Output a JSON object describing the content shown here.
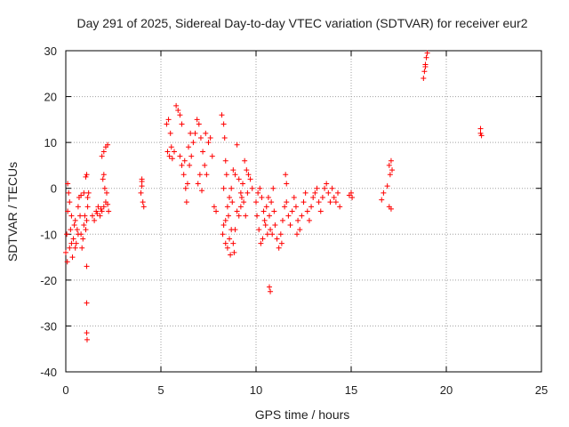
{
  "chart_data": {
    "type": "scatter",
    "title": "Day 291 of 2025, Sidereal Day-to-day VTEC variation (SDTVAR) for receiver eur2",
    "xlabel": "GPS time / hours",
    "ylabel": "SDTVAR / TECUs",
    "xlim": [
      0,
      25
    ],
    "ylim": [
      -40,
      30
    ],
    "xticks": [
      0,
      5,
      10,
      15,
      20,
      25
    ],
    "yticks": [
      -40,
      -30,
      -20,
      -10,
      0,
      10,
      20,
      30
    ],
    "grid": true,
    "marker": "+",
    "color": "#ff0000",
    "series": [
      {
        "name": "SDTVAR",
        "points": [
          [
            0.0,
            -14
          ],
          [
            0.05,
            -10
          ],
          [
            0.1,
            -5
          ],
          [
            0.15,
            -1
          ],
          [
            0.2,
            -3
          ],
          [
            0.25,
            -9
          ],
          [
            0.3,
            -12
          ],
          [
            0.35,
            -15
          ],
          [
            0.4,
            -11
          ],
          [
            0.45,
            -8
          ],
          [
            0.5,
            -7
          ],
          [
            0.55,
            -12
          ],
          [
            0.6,
            -9
          ],
          [
            0.65,
            -4
          ],
          [
            0.7,
            -2
          ],
          [
            0.75,
            -6
          ],
          [
            0.8,
            -10
          ],
          [
            0.85,
            -13
          ],
          [
            0.9,
            -11
          ],
          [
            0.95,
            -8
          ],
          [
            1.0,
            -6
          ],
          [
            1.05,
            -9
          ],
          [
            1.1,
            -7
          ],
          [
            1.15,
            -4
          ],
          [
            0.1,
            1
          ],
          [
            0.08,
            -16
          ],
          [
            0.2,
            -13
          ],
          [
            0.3,
            -6
          ],
          [
            0.5,
            -13
          ],
          [
            0.65,
            -10
          ],
          [
            0.8,
            -1.5
          ],
          [
            0.95,
            -1
          ],
          [
            1.05,
            2.5
          ],
          [
            1.1,
            3
          ],
          [
            1.15,
            -2
          ],
          [
            1.2,
            -1
          ],
          [
            1.1,
            -17
          ],
          [
            1.1,
            -25
          ],
          [
            1.1,
            -31.5
          ],
          [
            1.12,
            -33
          ],
          [
            1.4,
            -6
          ],
          [
            1.5,
            -7
          ],
          [
            1.6,
            -5
          ],
          [
            1.7,
            -4
          ],
          [
            1.8,
            -6
          ],
          [
            1.9,
            -5
          ],
          [
            2.0,
            -4
          ],
          [
            2.1,
            -3
          ],
          [
            2.2,
            -3.5
          ],
          [
            2.25,
            -5
          ],
          [
            1.9,
            7
          ],
          [
            2.0,
            8
          ],
          [
            2.1,
            9
          ],
          [
            2.2,
            9.5
          ],
          [
            2.0,
            3
          ],
          [
            2.05,
            0
          ],
          [
            1.95,
            2
          ],
          [
            2.15,
            -1
          ],
          [
            1.85,
            -4.5
          ],
          [
            1.65,
            -5.5
          ],
          [
            4.0,
            2
          ],
          [
            4.0,
            0.5
          ],
          [
            3.95,
            -1
          ],
          [
            4.05,
            -3
          ],
          [
            4.1,
            -4
          ],
          [
            4.0,
            1.5
          ],
          [
            5.3,
            14
          ],
          [
            5.4,
            15
          ],
          [
            5.5,
            12
          ],
          [
            5.35,
            8
          ],
          [
            5.45,
            7
          ],
          [
            5.6,
            6.5
          ],
          [
            5.7,
            8
          ],
          [
            5.8,
            18
          ],
          [
            5.9,
            17
          ],
          [
            6.0,
            16
          ],
          [
            6.1,
            14
          ],
          [
            6.0,
            7
          ],
          [
            6.1,
            5
          ],
          [
            6.2,
            3
          ],
          [
            6.3,
            0
          ],
          [
            6.35,
            -3
          ],
          [
            6.4,
            1
          ],
          [
            6.5,
            5
          ],
          [
            6.6,
            7
          ],
          [
            6.7,
            10
          ],
          [
            6.8,
            12
          ],
          [
            6.9,
            15
          ],
          [
            7.0,
            14
          ],
          [
            7.1,
            11
          ],
          [
            7.2,
            8
          ],
          [
            7.3,
            5
          ],
          [
            7.4,
            3
          ],
          [
            7.5,
            10
          ],
          [
            7.6,
            11
          ],
          [
            7.7,
            7
          ],
          [
            7.8,
            -4
          ],
          [
            7.9,
            -5
          ],
          [
            7.05,
            3
          ],
          [
            6.95,
            1
          ],
          [
            7.15,
            -0.5
          ],
          [
            6.45,
            9
          ],
          [
            6.55,
            12
          ],
          [
            7.35,
            12
          ],
          [
            5.55,
            9
          ],
          [
            6.25,
            6
          ],
          [
            8.2,
            16
          ],
          [
            8.3,
            14
          ],
          [
            8.35,
            11
          ],
          [
            8.4,
            6
          ],
          [
            8.45,
            3
          ],
          [
            8.3,
            0
          ],
          [
            8.5,
            -4
          ],
          [
            8.6,
            -2
          ],
          [
            8.7,
            0
          ],
          [
            8.8,
            4
          ],
          [
            8.9,
            3
          ],
          [
            9.0,
            9.5
          ],
          [
            9.1,
            2
          ],
          [
            9.2,
            -1
          ],
          [
            9.3,
            1
          ],
          [
            9.4,
            6
          ],
          [
            9.5,
            4
          ],
          [
            9.6,
            3
          ],
          [
            9.7,
            2
          ],
          [
            9.8,
            0
          ],
          [
            8.3,
            -8
          ],
          [
            8.25,
            -10
          ],
          [
            8.4,
            -12
          ],
          [
            8.5,
            -13
          ],
          [
            8.6,
            -11
          ],
          [
            8.7,
            -9
          ],
          [
            8.8,
            -12
          ],
          [
            8.85,
            -14
          ],
          [
            8.9,
            -9
          ],
          [
            9.0,
            -5
          ],
          [
            9.1,
            -6
          ],
          [
            9.2,
            -4
          ],
          [
            9.35,
            -3
          ],
          [
            9.45,
            -6
          ],
          [
            9.55,
            -1
          ],
          [
            8.65,
            -14.5
          ],
          [
            8.4,
            -7
          ],
          [
            8.55,
            -6
          ],
          [
            8.75,
            -3
          ],
          [
            9.25,
            -2
          ],
          [
            10.0,
            -3
          ],
          [
            10.1,
            -1
          ],
          [
            10.2,
            0
          ],
          [
            10.3,
            -2
          ],
          [
            10.4,
            -5
          ],
          [
            10.5,
            -8
          ],
          [
            10.6,
            -10
          ],
          [
            10.7,
            -6
          ],
          [
            10.8,
            -3
          ],
          [
            10.9,
            0
          ],
          [
            10.05,
            -6
          ],
          [
            10.15,
            -9
          ],
          [
            10.25,
            -12
          ],
          [
            10.35,
            -11
          ],
          [
            10.45,
            -7
          ],
          [
            10.55,
            -4
          ],
          [
            10.65,
            -2
          ],
          [
            10.75,
            -9
          ],
          [
            10.85,
            -10
          ],
          [
            10.95,
            -5
          ],
          [
            11.0,
            -8
          ],
          [
            11.1,
            -11
          ],
          [
            11.2,
            -13
          ],
          [
            11.3,
            -10
          ],
          [
            11.4,
            -7
          ],
          [
            11.5,
            -4
          ],
          [
            11.6,
            -3
          ],
          [
            11.7,
            -6
          ],
          [
            11.8,
            -8
          ],
          [
            11.9,
            -5
          ],
          [
            12.0,
            -2
          ],
          [
            12.1,
            -4
          ],
          [
            12.2,
            -7
          ],
          [
            12.3,
            -9
          ],
          [
            12.4,
            -6
          ],
          [
            12.5,
            -3
          ],
          [
            12.6,
            -1
          ],
          [
            12.7,
            -5
          ],
          [
            12.8,
            -7
          ],
          [
            12.9,
            -4
          ],
          [
            13.0,
            -2
          ],
          [
            13.1,
            -1
          ],
          [
            13.2,
            0
          ],
          [
            13.3,
            -3
          ],
          [
            13.4,
            -5
          ],
          [
            13.5,
            -2
          ],
          [
            13.6,
            0
          ],
          [
            13.7,
            1
          ],
          [
            13.8,
            -1
          ],
          [
            13.9,
            -3
          ],
          [
            14.0,
            0
          ],
          [
            14.1,
            -2
          ],
          [
            14.2,
            -3
          ],
          [
            14.3,
            -1
          ],
          [
            14.4,
            -4
          ],
          [
            11.55,
            3
          ],
          [
            11.6,
            1
          ],
          [
            11.35,
            -12
          ],
          [
            12.15,
            -10
          ],
          [
            10.7,
            -21.5
          ],
          [
            10.75,
            -22.5
          ],
          [
            14.9,
            -1.5
          ],
          [
            15.0,
            -1
          ],
          [
            15.05,
            -2
          ],
          [
            16.6,
            -2.5
          ],
          [
            16.7,
            -1
          ],
          [
            16.9,
            0.5
          ],
          [
            17.0,
            -4
          ],
          [
            17.1,
            -4.5
          ],
          [
            17.05,
            3
          ],
          [
            17.1,
            6
          ],
          [
            17.0,
            5
          ],
          [
            17.15,
            4
          ],
          [
            18.8,
            24
          ],
          [
            18.85,
            25.5
          ],
          [
            18.9,
            27
          ],
          [
            18.95,
            28.5
          ],
          [
            19.0,
            29.5
          ],
          [
            18.9,
            26.5
          ],
          [
            21.8,
            12
          ],
          [
            21.85,
            11.5
          ],
          [
            21.8,
            13
          ]
        ]
      }
    ]
  }
}
